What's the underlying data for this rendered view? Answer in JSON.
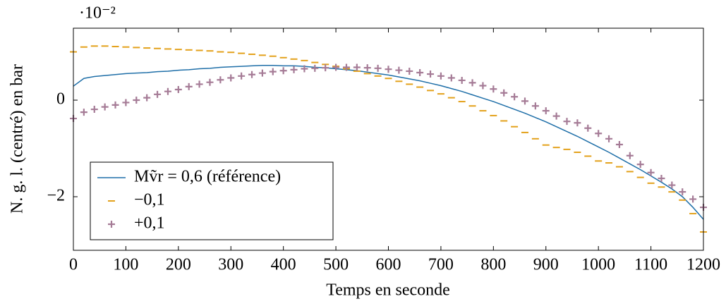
{
  "chart_data": {
    "type": "line",
    "x_label": "Temps en seconde",
    "y_label": "N. g. l. (centré) en bar",
    "y_scale_label": "·10⁻²",
    "x": [
      0,
      20,
      40,
      60,
      80,
      100,
      120,
      140,
      160,
      180,
      200,
      220,
      240,
      260,
      280,
      300,
      320,
      340,
      360,
      380,
      400,
      420,
      440,
      460,
      480,
      500,
      520,
      540,
      560,
      580,
      600,
      620,
      640,
      660,
      680,
      700,
      720,
      740,
      760,
      780,
      800,
      820,
      840,
      860,
      880,
      900,
      920,
      940,
      960,
      980,
      1000,
      1020,
      1040,
      1060,
      1080,
      1100,
      1120,
      1140,
      1160,
      1180,
      1200
    ],
    "series": [
      {
        "name": "Mṽr = 0,6 (référence)",
        "color": "#1f6fa8",
        "marker": "line",
        "values": [
          0.29,
          0.45,
          0.49,
          0.51,
          0.53,
          0.55,
          0.56,
          0.57,
          0.59,
          0.6,
          0.62,
          0.63,
          0.65,
          0.66,
          0.68,
          0.69,
          0.7,
          0.71,
          0.72,
          0.72,
          0.71,
          0.71,
          0.7,
          0.68,
          0.67,
          0.65,
          0.63,
          0.61,
          0.58,
          0.55,
          0.52,
          0.48,
          0.44,
          0.4,
          0.35,
          0.3,
          0.24,
          0.18,
          0.11,
          0.04,
          -0.03,
          -0.11,
          -0.19,
          -0.27,
          -0.36,
          -0.45,
          -0.55,
          -0.65,
          -0.75,
          -0.86,
          -0.97,
          -1.08,
          -1.2,
          -1.32,
          -1.44,
          -1.57,
          -1.7,
          -1.84,
          -2.0,
          -2.22,
          -2.47
        ]
      },
      {
        "name": "−0,1",
        "color": "#e3a11b",
        "marker": "dash",
        "values": [
          1.0,
          1.1,
          1.12,
          1.12,
          1.11,
          1.1,
          1.09,
          1.08,
          1.07,
          1.06,
          1.05,
          1.04,
          1.03,
          1.02,
          1.0,
          0.99,
          0.97,
          0.95,
          0.93,
          0.91,
          0.88,
          0.85,
          0.82,
          0.78,
          0.74,
          0.7,
          0.65,
          0.6,
          0.55,
          0.5,
          0.45,
          0.39,
          0.33,
          0.27,
          0.2,
          0.13,
          0.05,
          -0.03,
          -0.12,
          -0.22,
          -0.32,
          -0.43,
          -0.55,
          -0.67,
          -0.8,
          -0.93,
          -0.98,
          -1.02,
          -1.08,
          -1.16,
          -1.26,
          -1.3,
          -1.38,
          -1.48,
          -1.6,
          -1.72,
          -1.8,
          -1.9,
          -2.07,
          -2.35,
          -2.73
        ]
      },
      {
        "name": "+0,1",
        "color": "#a57b96",
        "marker": "plus",
        "values": [
          -0.38,
          -0.25,
          -0.19,
          -0.14,
          -0.1,
          -0.05,
          0.0,
          0.05,
          0.12,
          0.18,
          0.22,
          0.28,
          0.33,
          0.37,
          0.42,
          0.46,
          0.5,
          0.53,
          0.56,
          0.59,
          0.61,
          0.63,
          0.65,
          0.66,
          0.67,
          0.68,
          0.68,
          0.68,
          0.67,
          0.66,
          0.64,
          0.62,
          0.6,
          0.57,
          0.54,
          0.5,
          0.46,
          0.41,
          0.36,
          0.3,
          0.23,
          0.15,
          0.07,
          -0.02,
          -0.12,
          -0.22,
          -0.33,
          -0.44,
          -0.47,
          -0.58,
          -0.69,
          -0.8,
          -0.92,
          -1.15,
          -1.33,
          -1.5,
          -1.62,
          -1.76,
          -1.9,
          -2.05,
          -2.22
        ]
      }
    ],
    "xlim": [
      0,
      1200
    ],
    "xticks": [
      0,
      100,
      200,
      300,
      400,
      500,
      600,
      700,
      800,
      900,
      1000,
      1100,
      1200
    ],
    "ylim": [
      -3.11,
      1.49
    ],
    "yticks": [
      {
        "value": -2,
        "label": "−2"
      },
      0
    ],
    "legend": "lower left"
  }
}
